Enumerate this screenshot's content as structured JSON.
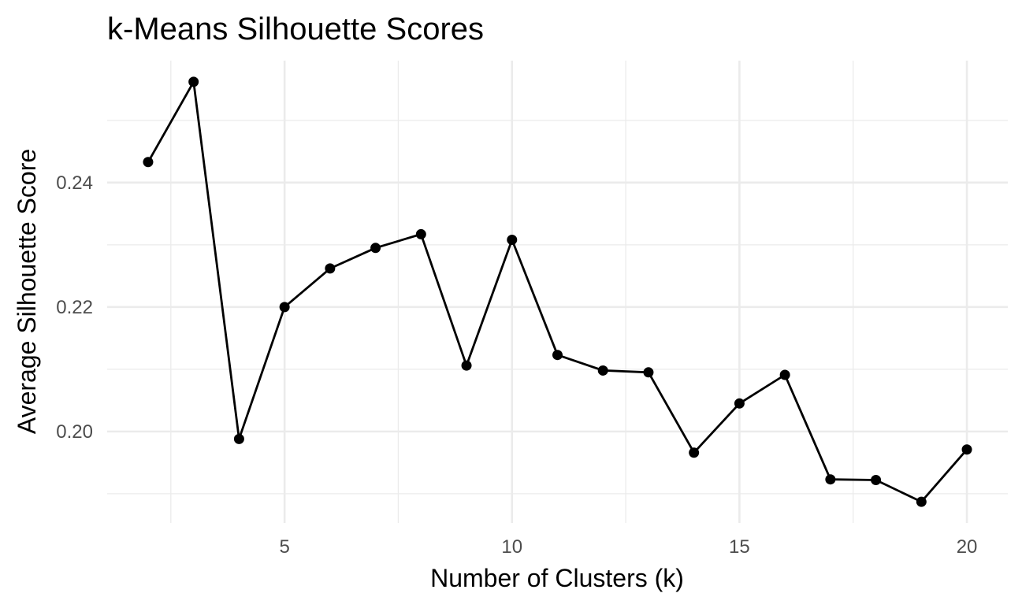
{
  "chart_data": {
    "type": "line",
    "title": "k-Means Silhouette Scores",
    "xlabel": "Number of Clusters (k)",
    "ylabel": "Average Silhouette Score",
    "x": [
      2,
      3,
      4,
      5,
      6,
      7,
      8,
      9,
      10,
      11,
      12,
      13,
      14,
      15,
      16,
      17,
      18,
      19,
      20
    ],
    "series": [
      {
        "values": [
          0.2433,
          0.2562,
          0.1988,
          0.22,
          0.2262,
          0.2295,
          0.2317,
          0.2106,
          0.2308,
          0.2123,
          0.2098,
          0.2095,
          0.1966,
          0.2045,
          0.2091,
          0.1923,
          0.1922,
          0.1887,
          0.1971
        ],
        "color": "#000000"
      }
    ],
    "xlim": [
      1.1,
      20.9
    ],
    "ylim": [
      0.1853,
      0.2596
    ],
    "x_ticks": [
      5,
      10,
      15,
      20
    ],
    "x_tick_labels": [
      "5",
      "10",
      "15",
      "20"
    ],
    "x_minor_ticks": [
      2.5,
      7.5,
      12.5,
      17.5
    ],
    "y_ticks": [
      0.2,
      0.22,
      0.24
    ],
    "y_tick_labels": [
      "0.20",
      "0.22",
      "0.24"
    ],
    "y_minor_ticks": [
      0.19,
      0.21,
      0.23,
      0.25
    ],
    "grid": true,
    "legend": "none"
  }
}
